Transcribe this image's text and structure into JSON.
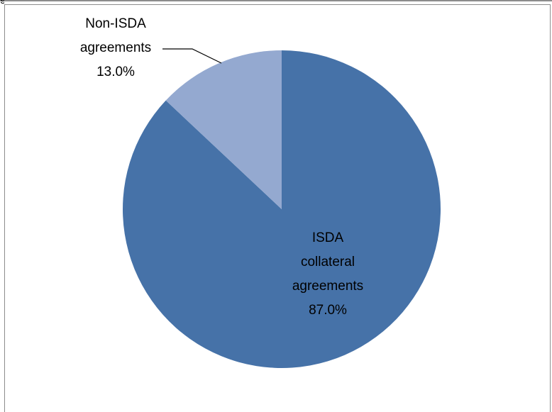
{
  "chart_data": {
    "type": "pie",
    "title": "",
    "slices": [
      {
        "label_lines": [
          "ISDA",
          "collateral",
          "agreements"
        ],
        "value": 87.0,
        "percent_label": "87.0%",
        "color": "#4672A8"
      },
      {
        "label_lines": [
          "Non-ISDA",
          "agreements"
        ],
        "value": 13.0,
        "percent_label": "13.0%",
        "color": "#94A9D0"
      }
    ],
    "start_angle": "12 o'clock",
    "direction": "clockwise",
    "legend": "none",
    "data_labels": true
  },
  "page": {
    "partial_glyph": "g"
  }
}
